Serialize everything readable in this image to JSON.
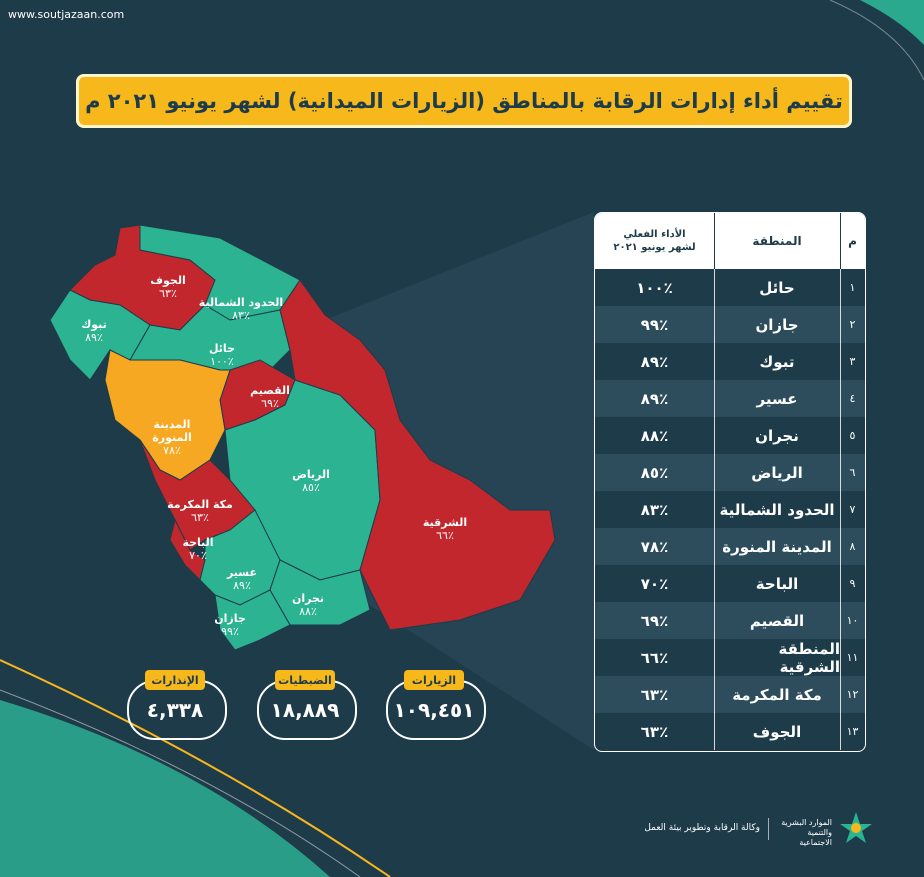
{
  "watermark": "www.soutjazaan.com",
  "title": "تقييم أداء إدارات الرقابة بالمناطق (الزيارات الميدانية) لشهر يونيو ٢٠٢١ م",
  "table": {
    "headers": {
      "num": "م",
      "region": "المنطقة",
      "perf_line1": "الأداء الفعلي",
      "perf_line2": "لشهر يونيو ٢٠٢١"
    },
    "rows": [
      {
        "num": "١",
        "region": "حائل",
        "perf": "٪١٠٠"
      },
      {
        "num": "٢",
        "region": "جازان",
        "perf": "٪٩٩"
      },
      {
        "num": "٣",
        "region": "تبوك",
        "perf": "٪٨٩"
      },
      {
        "num": "٤",
        "region": "عسير",
        "perf": "٪٨٩"
      },
      {
        "num": "٥",
        "region": "نجران",
        "perf": "٪٨٨"
      },
      {
        "num": "٦",
        "region": "الرياض",
        "perf": "٪٨٥"
      },
      {
        "num": "٧",
        "region": "الحدود الشمالية",
        "perf": "٪٨٣"
      },
      {
        "num": "٨",
        "region": "المدينة المنورة",
        "perf": "٪٧٨"
      },
      {
        "num": "٩",
        "region": "الباحة",
        "perf": "٪٧٠"
      },
      {
        "num": "١٠",
        "region": "القصيم",
        "perf": "٪٦٩"
      },
      {
        "num": "١١",
        "region": "المنطقة الشرقية",
        "perf": "٪٦٦"
      },
      {
        "num": "١٢",
        "region": "مكة المكرمة",
        "perf": "٪٦٣"
      },
      {
        "num": "١٣",
        "region": "الجوف",
        "perf": "٪٦٣"
      }
    ]
  },
  "map_labels": [
    {
      "name": "الجوف",
      "value": "٪٦٣"
    },
    {
      "name": "الحدود الشمالية",
      "value": "٪٨٣"
    },
    {
      "name": "تبوك",
      "value": "٪٨٩"
    },
    {
      "name": "حائل",
      "value": "٪١٠٠"
    },
    {
      "name": "القصيم",
      "value": "٪٦٩"
    },
    {
      "name": "المدينة المنورة",
      "value": "٪٧٨"
    },
    {
      "name": "الرياض",
      "value": "٪٨٥"
    },
    {
      "name": "الشرقية",
      "value": "٪٦٦"
    },
    {
      "name": "مكة المكرمة",
      "value": "٪٦٣"
    },
    {
      "name": "الباحة",
      "value": "٪٧٠"
    },
    {
      "name": "عسير",
      "value": "٪٨٩"
    },
    {
      "name": "نجران",
      "value": "٪٨٨"
    },
    {
      "name": "جازان",
      "value": "٪٩٩"
    }
  ],
  "stats": {
    "visits_label": "الزيارات",
    "visits_value": "١٠٩,٤٥١",
    "seizures_label": "الضبطيات",
    "seizures_value": "١٨,٨٨٩",
    "warnings_label": "الإنذارات",
    "warnings_value": "٤,٣٣٨"
  },
  "footer": {
    "agency": "وكالة الرقابة وتطوير بيئة العمل",
    "ministry_line1": "الموارد البشرية",
    "ministry_line2": "والتنمية الاجتماعية"
  },
  "colors": {
    "background": "#1e3b4a",
    "gold": "#f7b81c",
    "green": "#2bb392",
    "red": "#c1272d",
    "orange": "#f7a823"
  }
}
